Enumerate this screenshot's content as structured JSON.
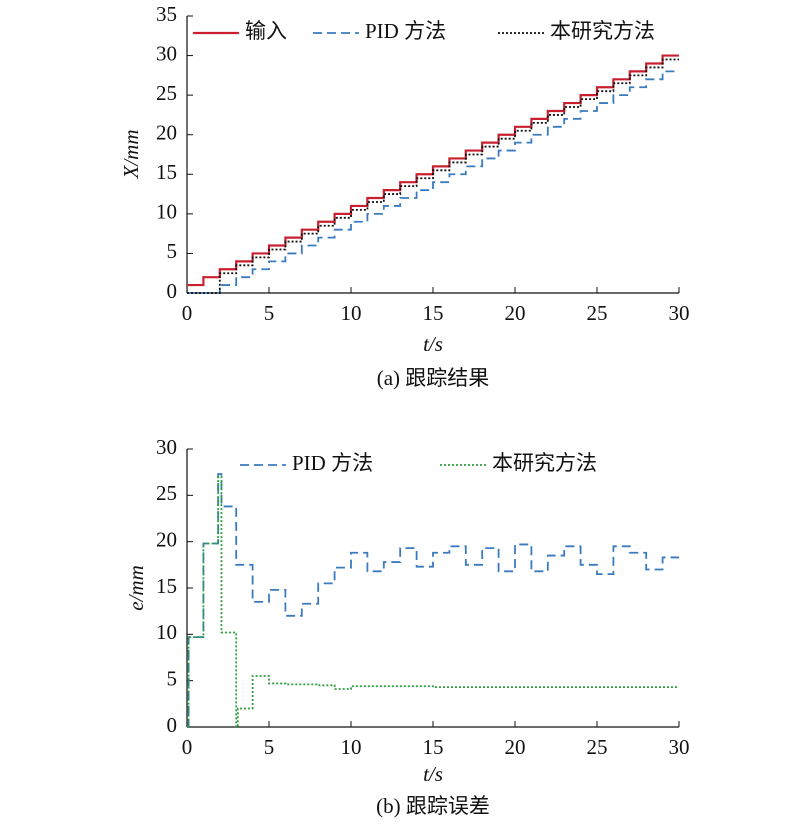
{
  "chart_data": [
    {
      "type": "line",
      "step": true,
      "xlabel": "t/s",
      "ylabel": "X/mm",
      "caption": "(a) 跟踪结果",
      "xlim": [
        0,
        30
      ],
      "xticks": [
        0,
        5,
        10,
        15,
        20,
        25,
        30
      ],
      "ylim": [
        0,
        35
      ],
      "yticks": [
        0,
        5,
        10,
        15,
        20,
        25,
        30,
        35
      ],
      "series": [
        {
          "name": "输入",
          "color": "#c8202f",
          "style": "solid",
          "x": [
            0,
            1,
            2,
            3,
            4,
            5,
            6,
            7,
            8,
            9,
            10,
            11,
            12,
            13,
            14,
            15,
            16,
            17,
            18,
            19,
            20,
            21,
            22,
            23,
            24,
            25,
            26,
            27,
            28,
            29,
            30
          ],
          "values": [
            1,
            2,
            3,
            4,
            5,
            6,
            7,
            8,
            9,
            10,
            11,
            12,
            13,
            14,
            15,
            16,
            17,
            18,
            19,
            20,
            21,
            22,
            23,
            24,
            25,
            26,
            27,
            28,
            29,
            30,
            30
          ]
        },
        {
          "name": "PID 方法",
          "color": "#3a7bbf",
          "style": "dashed",
          "x": [
            0,
            1,
            2,
            3,
            4,
            5,
            6,
            7,
            8,
            9,
            10,
            11,
            12,
            13,
            14,
            15,
            16,
            17,
            18,
            19,
            20,
            21,
            22,
            23,
            24,
            25,
            26,
            27,
            28,
            29,
            30
          ],
          "values": [
            0,
            0,
            1,
            2,
            3,
            4,
            5,
            6,
            7,
            8,
            9,
            10,
            11,
            12,
            13,
            14,
            15,
            16,
            17,
            18,
            19,
            20,
            21,
            22,
            23,
            24,
            25,
            26,
            27,
            28,
            28
          ]
        },
        {
          "name": "本研究方法",
          "color": "#111111",
          "style": "dotted",
          "x": [
            0,
            1,
            2,
            3,
            4,
            5,
            6,
            7,
            8,
            9,
            10,
            11,
            12,
            13,
            14,
            15,
            16,
            17,
            18,
            19,
            20,
            21,
            22,
            23,
            24,
            25,
            26,
            27,
            28,
            29,
            30
          ],
          "values": [
            0,
            0,
            2.5,
            3.5,
            4.5,
            5.5,
            6.5,
            7.5,
            8.5,
            9.5,
            10.5,
            11.5,
            12.5,
            13.5,
            14.5,
            15.5,
            16.5,
            17.5,
            18.5,
            19.5,
            20.5,
            21.5,
            22.5,
            23.5,
            24.5,
            25.5,
            26.5,
            27.5,
            28.5,
            29.5,
            29.5
          ]
        }
      ]
    },
    {
      "type": "line",
      "step": true,
      "xlabel": "t/s",
      "ylabel": "e/mm",
      "caption": "(b) 跟踪误差",
      "xlim": [
        0,
        30
      ],
      "xticks": [
        0,
        5,
        10,
        15,
        20,
        25,
        30
      ],
      "ylim": [
        0,
        30
      ],
      "yticks": [
        0,
        5,
        10,
        15,
        20,
        25,
        30
      ],
      "series": [
        {
          "name": "PID 方法",
          "color": "#3a7bbf",
          "style": "dashed",
          "x": [
            0,
            0.1,
            1,
            1.9,
            2.1,
            3,
            4,
            5,
            6,
            7,
            8,
            9,
            10,
            11,
            12,
            13,
            14,
            15,
            16,
            17,
            18,
            19,
            20,
            21,
            22,
            23,
            24,
            25,
            26,
            27,
            28,
            29,
            30
          ],
          "values": [
            0,
            9.7,
            19.8,
            27.3,
            23.8,
            17.5,
            13.5,
            14.8,
            12,
            13.3,
            15.5,
            17.2,
            18.8,
            16.8,
            17.8,
            19.3,
            17.3,
            18.8,
            19.5,
            17.5,
            19.3,
            16.8,
            19.7,
            16.8,
            18.5,
            19.5,
            17.5,
            16.5,
            19.5,
            18.8,
            17,
            18.3,
            18.3
          ]
        },
        {
          "name": "本研究方法",
          "color": "#2e9e3e",
          "style": "dotted",
          "x": [
            0,
            0.1,
            1,
            1.9,
            2.1,
            3,
            3.1,
            4,
            5,
            6,
            8,
            9,
            10,
            15,
            30
          ],
          "values": [
            0,
            9.7,
            19.8,
            27,
            10.2,
            0,
            2,
            5.5,
            4.7,
            4.6,
            4.5,
            4.1,
            4.4,
            4.3,
            4.3
          ]
        }
      ]
    }
  ]
}
